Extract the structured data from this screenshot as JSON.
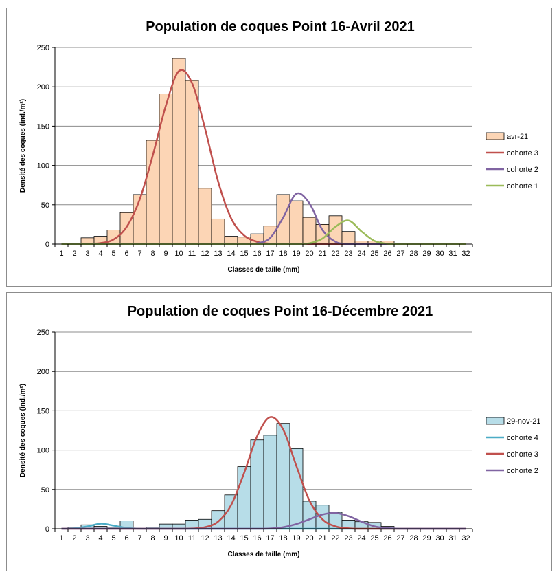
{
  "charts": [
    {
      "title": "Population de coques Point 16-Avril 2021",
      "xlabel": "Classes de taille (mm)",
      "ylabel": "Densité des coques  (ind./m²)",
      "legend": [
        "avr-21",
        "cohorte 3",
        "cohorte 2",
        "cohorte 1"
      ]
    },
    {
      "title": "Population de coques Point 16-Décembre 2021",
      "xlabel": "Classes de taille (mm)",
      "ylabel": "Densité des coques  (ind./m²)",
      "legend": [
        "29-nov-21",
        "cohorte 4",
        "cohorte 3",
        "cohorte 2"
      ]
    }
  ],
  "chart_data": [
    {
      "type": "bar",
      "title": "Population de coques Point 16-Avril 2021",
      "xlabel": "Classes de taille (mm)",
      "ylabel": "Densité des coques  (ind./m²)",
      "categories": [
        1,
        2,
        3,
        4,
        5,
        6,
        7,
        8,
        9,
        10,
        11,
        12,
        13,
        14,
        15,
        16,
        17,
        18,
        19,
        20,
        21,
        22,
        23,
        24,
        25,
        26,
        27,
        28,
        29,
        30,
        31,
        32
      ],
      "ylim": [
        0,
        250
      ],
      "yticks": [
        0,
        50,
        100,
        150,
        200,
        250
      ],
      "grid": true,
      "legend_position": "right",
      "bar_color": "#fcd5b5",
      "series": [
        {
          "name": "avr-21",
          "kind": "bar",
          "values": [
            0,
            0,
            8,
            10,
            18,
            40,
            63,
            132,
            191,
            236,
            208,
            71,
            32,
            10,
            9,
            13,
            23,
            63,
            55,
            34,
            25,
            36,
            16,
            4,
            4,
            4,
            0,
            0,
            0,
            0,
            0,
            0
          ]
        },
        {
          "name": "cohorte 3",
          "kind": "line",
          "color": "#c0504d",
          "values": [
            0,
            0,
            0.3,
            1.3,
            6,
            22,
            57,
            113,
            176,
            220,
            205,
            147,
            80,
            33,
            11,
            3,
            0.5,
            0.1,
            0,
            0,
            0,
            0,
            0,
            0,
            0,
            0,
            0,
            0,
            0,
            0,
            0,
            0
          ]
        },
        {
          "name": "cohorte 2",
          "kind": "line",
          "color": "#8064a2",
          "values": [
            0,
            0,
            0,
            0,
            0,
            0,
            0,
            0,
            0,
            0,
            0,
            0,
            0,
            0,
            0,
            1,
            8,
            34,
            64,
            52,
            18,
            3,
            0,
            0,
            0,
            0,
            0,
            0,
            0,
            0,
            0,
            0
          ]
        },
        {
          "name": "cohorte 1",
          "kind": "line",
          "color": "#9bbb59",
          "values": [
            0,
            0,
            0,
            0,
            0,
            0,
            0,
            0,
            0,
            0,
            0,
            0,
            0,
            0,
            0,
            0,
            0,
            0,
            0,
            1,
            7,
            22,
            30,
            16,
            4,
            0.3,
            0,
            0,
            0,
            0,
            0,
            0
          ]
        }
      ]
    },
    {
      "type": "bar",
      "title": "Population de coques Point 16-Décembre 2021",
      "xlabel": "Classes de taille (mm)",
      "ylabel": "Densité des coques  (ind./m²)",
      "categories": [
        1,
        2,
        3,
        4,
        5,
        6,
        7,
        8,
        9,
        10,
        11,
        12,
        13,
        14,
        15,
        16,
        17,
        18,
        19,
        20,
        21,
        22,
        23,
        24,
        25,
        26,
        27,
        28,
        29,
        30,
        31,
        32
      ],
      "ylim": [
        0,
        250
      ],
      "yticks": [
        0,
        50,
        100,
        150,
        200,
        250
      ],
      "grid": true,
      "legend_position": "right",
      "bar_color": "#b7dde8",
      "series": [
        {
          "name": "29-nov-21",
          "kind": "bar",
          "values": [
            0,
            2,
            5,
            3,
            2,
            10,
            0,
            2,
            6,
            6,
            11,
            12,
            23,
            43,
            79,
            113,
            119,
            134,
            102,
            35,
            30,
            21,
            11,
            9,
            8,
            3,
            0,
            0,
            0,
            0,
            0,
            0
          ]
        },
        {
          "name": "cohorte 4",
          "kind": "line",
          "color": "#4bacc6",
          "values": [
            0,
            0.5,
            3,
            6.5,
            4,
            1,
            0.1,
            0,
            0,
            0,
            0,
            0,
            0,
            0,
            0,
            0,
            0,
            0,
            0,
            0,
            0,
            0,
            0,
            0,
            0,
            0,
            0,
            0,
            0,
            0,
            0,
            0
          ]
        },
        {
          "name": "cohorte 3",
          "kind": "line",
          "color": "#c0504d",
          "values": [
            0,
            0,
            0,
            0,
            0,
            0,
            0,
            0,
            0,
            0,
            0.3,
            2,
            9,
            30,
            71,
            118,
            142,
            126,
            80,
            36,
            12,
            3,
            0.5,
            0,
            0,
            0,
            0,
            0,
            0,
            0,
            0,
            0
          ]
        },
        {
          "name": "cohorte 2",
          "kind": "line",
          "color": "#8064a2",
          "values": [
            0,
            0,
            0,
            0,
            0,
            0,
            0,
            0,
            0,
            0,
            0,
            0,
            0,
            0,
            0,
            0,
            0.3,
            2,
            6,
            12,
            18,
            20,
            16,
            9,
            3,
            0.8,
            0,
            0,
            0,
            0,
            0,
            0
          ]
        }
      ]
    }
  ]
}
